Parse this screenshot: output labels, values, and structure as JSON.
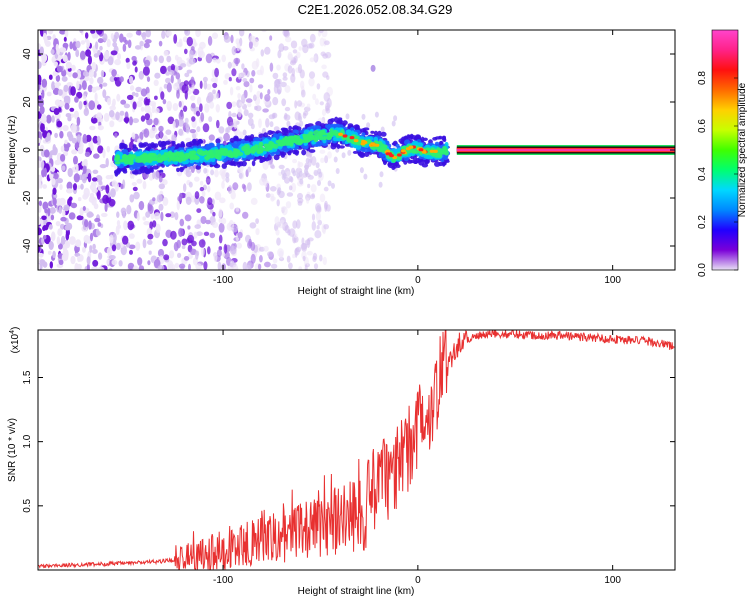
{
  "title": "C2E1.2026.052.08.34.G29",
  "chart_data": [
    {
      "type": "heatmap",
      "name": "spectrogram",
      "xlabel": "Height of straight line (km)",
      "ylabel": "Frequency (Hz)",
      "xlim": [
        -195,
        132
      ],
      "ylim": [
        -50,
        50
      ],
      "xticks": [
        -100,
        0,
        100
      ],
      "yticks": [
        -40,
        -20,
        0,
        20,
        40
      ],
      "tick_labels": {
        "x": [
          "-100",
          "0",
          "100"
        ],
        "y": [
          "-40",
          "-20",
          "0",
          "20",
          "40"
        ]
      },
      "colorbar": {
        "label": "Normalized spectral amplitude",
        "range": [
          0,
          1
        ],
        "ticks": [
          0.0,
          0.2,
          0.4,
          0.6,
          0.8
        ],
        "tick_labels": [
          "0.0",
          "0.2",
          "0.4",
          "0.6",
          "0.8"
        ],
        "colors": [
          "#e8e0f4",
          "#7a00d8",
          "#2000ff",
          "#0088ff",
          "#00d8ff",
          "#00ff70",
          "#40ff00",
          "#c8ff00",
          "#ffd000",
          "#ff6a00",
          "#ff1010",
          "#ff2288",
          "#ff44cc"
        ]
      },
      "ridge": {
        "x": [
          -150,
          -130,
          -110,
          -95,
          -80,
          -65,
          -50,
          -40,
          -35,
          -28,
          -22,
          -18,
          -13,
          -8,
          -3,
          2,
          6,
          10,
          15,
          20,
          132
        ],
        "y": [
          -4,
          -3,
          -2,
          -1,
          1,
          4,
          6,
          7,
          5,
          3,
          2,
          1,
          -3,
          -1,
          1,
          0,
          -1,
          -1,
          0,
          0,
          0
        ]
      },
      "line": {
        "x_start": 20,
        "x_end": 132,
        "y": 0
      }
    },
    {
      "type": "line",
      "name": "snr",
      "xlabel": "Height of straight line (km)",
      "ylabel": "SNR (10 * v/v)",
      "scale_label": "(x10",
      "scale_exponent": "4",
      "xlim": [
        -195,
        132
      ],
      "ylim": [
        0,
        1.87
      ],
      "xticks": [
        -100,
        0,
        100
      ],
      "yticks": [
        0.5,
        1.0,
        1.5
      ],
      "tick_labels": {
        "x": [
          "-100",
          "0",
          "100"
        ],
        "y": [
          "0.5",
          "1.0",
          "1.5"
        ]
      },
      "color": "#e83030",
      "series": [
        {
          "name": "SNR",
          "x": [
            -195,
            -175,
            -155,
            -140,
            -130,
            -120,
            -110,
            -100,
            -90,
            -80,
            -70,
            -60,
            -50,
            -40,
            -30,
            -25,
            -20,
            -15,
            -10,
            -5,
            0,
            3,
            5,
            7,
            9,
            12,
            15,
            18,
            20,
            25,
            30,
            35,
            40,
            50,
            60,
            70,
            80,
            90,
            100,
            110,
            120,
            132
          ],
          "y": [
            0.03,
            0.04,
            0.05,
            0.06,
            0.07,
            0.09,
            0.12,
            0.16,
            0.2,
            0.22,
            0.25,
            0.3,
            0.34,
            0.38,
            0.45,
            0.55,
            0.65,
            0.72,
            0.8,
            0.95,
            1.1,
            1.2,
            1.25,
            1.3,
            1.4,
            1.5,
            1.6,
            1.7,
            1.75,
            1.8,
            1.82,
            1.83,
            1.84,
            1.84,
            1.83,
            1.83,
            1.82,
            1.81,
            1.8,
            1.79,
            1.78,
            1.74
          ]
        }
      ]
    }
  ]
}
